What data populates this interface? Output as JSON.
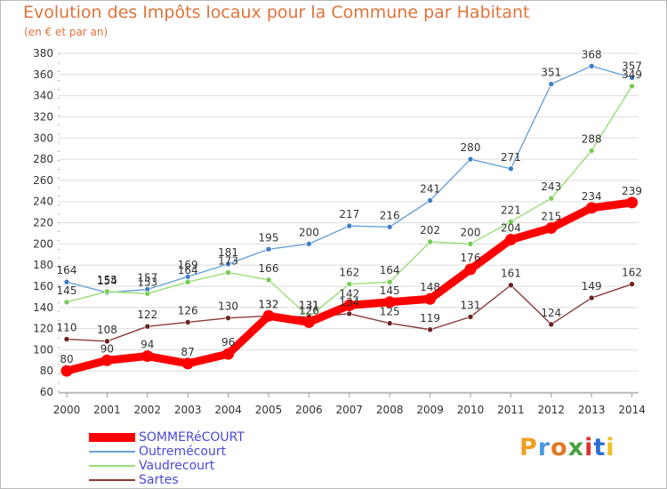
{
  "title": "Evolution des Impôts locaux pour la Commune par Habitant",
  "subtitle": "(en € et par an)",
  "logo": {
    "text": "Proxiti",
    "letters": [
      "P",
      "r",
      "o",
      "x",
      "i",
      "t",
      "i"
    ],
    "colors": [
      "#f0a020",
      "#4a9be0",
      "#e07820",
      "#4aa040",
      "#e03030",
      "#2a6fd0",
      "#f0c020"
    ]
  },
  "chart_data": {
    "type": "line",
    "title": "Evolution des Impôts locaux pour la Commune par Habitant",
    "subtitle": "(en € et par an)",
    "x": [
      2000,
      2001,
      2002,
      2003,
      2004,
      2005,
      2006,
      2007,
      2008,
      2009,
      2010,
      2011,
      2012,
      2013,
      2014
    ],
    "x_tick_labels": [
      "2000",
      "2001",
      "2002",
      "2003",
      "2004",
      "2005",
      "2006",
      "2007",
      "2008",
      "2009",
      "2010",
      "2011",
      "2012",
      "2013",
      "2014"
    ],
    "ylim": [
      60,
      380
    ],
    "y_ticks": [
      60,
      80,
      100,
      120,
      140,
      160,
      180,
      200,
      220,
      240,
      260,
      280,
      300,
      320,
      340,
      360,
      380
    ],
    "grid": "horizontal",
    "legend_position": "bottom-left",
    "series": [
      {
        "name": "Outremécourt",
        "color": "#6aa2d8",
        "marker": "#3f7fc4",
        "values": [
          164,
          154,
          157,
          169,
          181,
          195,
          200,
          217,
          216,
          241,
          280,
          271,
          351,
          368,
          357
        ],
        "labels": [
          "164",
          "154",
          "157",
          "169",
          "181",
          "195",
          "200",
          "217",
          "216",
          "241",
          "280",
          "271",
          "351",
          "368",
          "357"
        ]
      },
      {
        "name": "Vaudrecourt",
        "color": "#99dd77",
        "marker": "#77cc55",
        "values": [
          145,
          155,
          153,
          164,
          173,
          166,
          131,
          162,
          164,
          202,
          200,
          221,
          243,
          288,
          349
        ],
        "labels": [
          "145",
          "155",
          "153",
          "164",
          "173",
          "166",
          "131",
          "162",
          "164",
          "202",
          "200",
          "221",
          "243",
          "288",
          "349"
        ]
      },
      {
        "name": "Sartes",
        "color": "#8a3a3a",
        "marker": "#6a2424",
        "values": [
          110,
          108,
          122,
          126,
          130,
          132,
          131,
          134,
          125,
          119,
          131,
          161,
          124,
          149,
          162
        ],
        "labels": [
          "110",
          "108",
          "122",
          "126",
          "130",
          "132",
          "131",
          "134",
          "125",
          "119",
          "131",
          "161",
          "124",
          "149",
          "162"
        ]
      },
      {
        "name": "SOMMERéCOURT",
        "color": "#ff0000",
        "marker": "#ff0000",
        "values": [
          80,
          90,
          94,
          87,
          96,
          132,
          126,
          142,
          145,
          148,
          176,
          204,
          215,
          234,
          239
        ],
        "labels": [
          "80",
          "90",
          "94",
          "87",
          "96",
          "132",
          "126",
          "142",
          "145",
          "148",
          "176",
          "204",
          "215",
          "234",
          "239"
        ]
      }
    ],
    "legend": [
      {
        "name": "SOMMERéCOURT",
        "color": "#ff0000"
      },
      {
        "name": "Outremécourt",
        "color": "#6aa2d8"
      },
      {
        "name": "Vaudrecourt",
        "color": "#99dd77"
      },
      {
        "name": "Sartes",
        "color": "#8a3a3a"
      }
    ]
  }
}
